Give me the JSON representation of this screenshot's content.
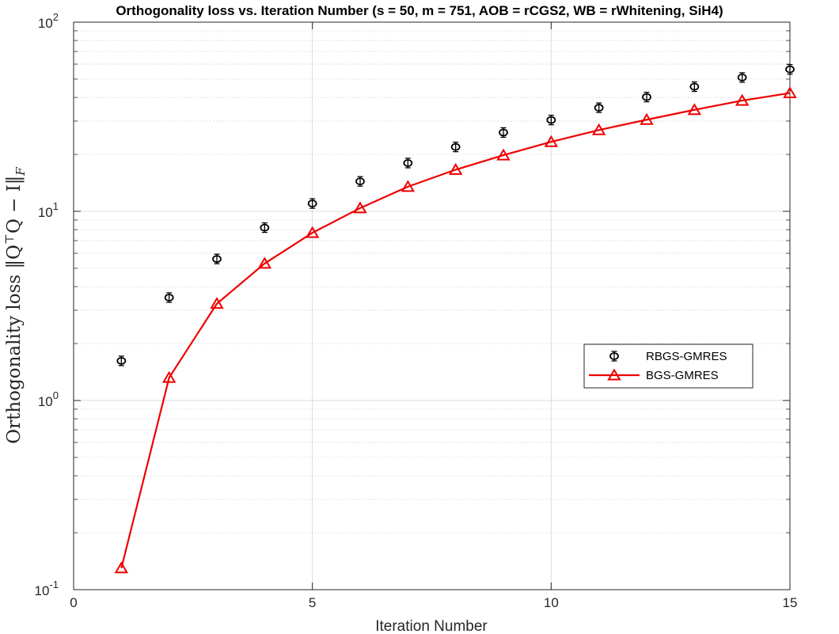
{
  "chart_data": {
    "type": "line",
    "title": "Orthogonality loss vs. Iteration Number (s = 50, m = 751, AOB = rCGS2, WB = rWhitening, SiH4)",
    "xlabel": "Iteration Number",
    "ylabel": {
      "prefix": "Orthogonality loss",
      "formula": "‖Q",
      "sup": "⊤",
      "mid": "Q − I‖",
      "sub": "F"
    },
    "xlim": [
      0,
      15
    ],
    "ylim": [
      0.1,
      100
    ],
    "yscale": "log",
    "grid": true,
    "legend_position": "right-middle",
    "x_ticks": [
      "0",
      "5",
      "10",
      "15"
    ],
    "y_ticks": [
      {
        "base": "10",
        "exp": "-1",
        "value": 0.1
      },
      {
        "base": "10",
        "exp": "0",
        "value": 1
      },
      {
        "base": "10",
        "exp": "1",
        "value": 10
      },
      {
        "base": "10",
        "exp": "2",
        "value": 100
      }
    ],
    "series": [
      {
        "name": "RBGS-GMRES",
        "color": "#000000",
        "marker": "circle-errorbar",
        "line": "none",
        "x": [
          1,
          2,
          3,
          4,
          5,
          6,
          7,
          8,
          9,
          10,
          11,
          12,
          13,
          14,
          15
        ],
        "values": [
          1.62,
          3.5,
          5.6,
          8.2,
          11.0,
          14.4,
          18.0,
          21.9,
          26.1,
          30.4,
          35.3,
          40.2,
          45.6,
          51.0,
          56.3
        ]
      },
      {
        "name": "BGS-GMRES",
        "color": "#ee0000",
        "marker": "triangle",
        "line": "solid",
        "x": [
          1,
          2,
          3,
          4,
          5,
          6,
          7,
          8,
          9,
          10,
          11,
          12,
          13,
          14,
          15
        ],
        "values": [
          0.13,
          1.32,
          3.25,
          5.3,
          7.7,
          10.4,
          13.5,
          16.6,
          19.8,
          23.3,
          26.9,
          30.5,
          34.4,
          38.5,
          42.2
        ]
      }
    ]
  }
}
